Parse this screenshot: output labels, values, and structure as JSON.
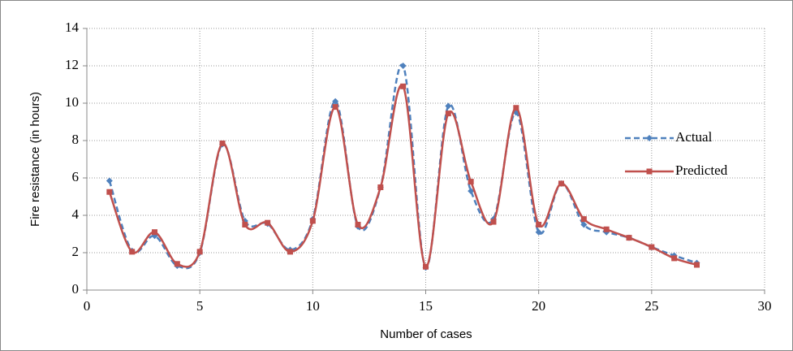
{
  "chart_data": {
    "type": "line",
    "x_label": "Number of cases",
    "y_label": "Fire resistance  (in hours)",
    "x": [
      1,
      2,
      3,
      4,
      5,
      6,
      7,
      8,
      9,
      10,
      11,
      12,
      13,
      14,
      15,
      16,
      17,
      18,
      19,
      20,
      21,
      22,
      23,
      24,
      25,
      26,
      27
    ],
    "series": [
      {
        "name": "Actual",
        "color": "#4f81bd",
        "dash": true,
        "marker": "diamond",
        "values": [
          5.85,
          2.1,
          2.9,
          1.3,
          2.0,
          7.8,
          3.7,
          3.55,
          2.15,
          3.8,
          10.1,
          3.4,
          5.5,
          12.0,
          1.2,
          9.85,
          5.3,
          3.8,
          9.5,
          3.1,
          5.7,
          3.5,
          3.1,
          2.8,
          2.3,
          1.85,
          1.45
        ]
      },
      {
        "name": "Predicted",
        "color": "#c0504d",
        "dash": false,
        "marker": "square",
        "values": [
          5.25,
          2.05,
          3.1,
          1.4,
          2.05,
          7.85,
          3.5,
          3.6,
          2.05,
          3.7,
          9.8,
          3.5,
          5.5,
          10.9,
          1.25,
          9.45,
          5.8,
          3.65,
          9.75,
          3.5,
          5.7,
          3.8,
          3.25,
          2.8,
          2.3,
          1.7,
          1.35
        ]
      }
    ],
    "xlim": [
      0,
      30
    ],
    "xticks": [
      0,
      5,
      10,
      15,
      20,
      25,
      30
    ],
    "ylim": [
      0,
      14
    ],
    "yticks": [
      0,
      2,
      4,
      6,
      8,
      10,
      12,
      14
    ],
    "grid": true,
    "legend": "right"
  }
}
